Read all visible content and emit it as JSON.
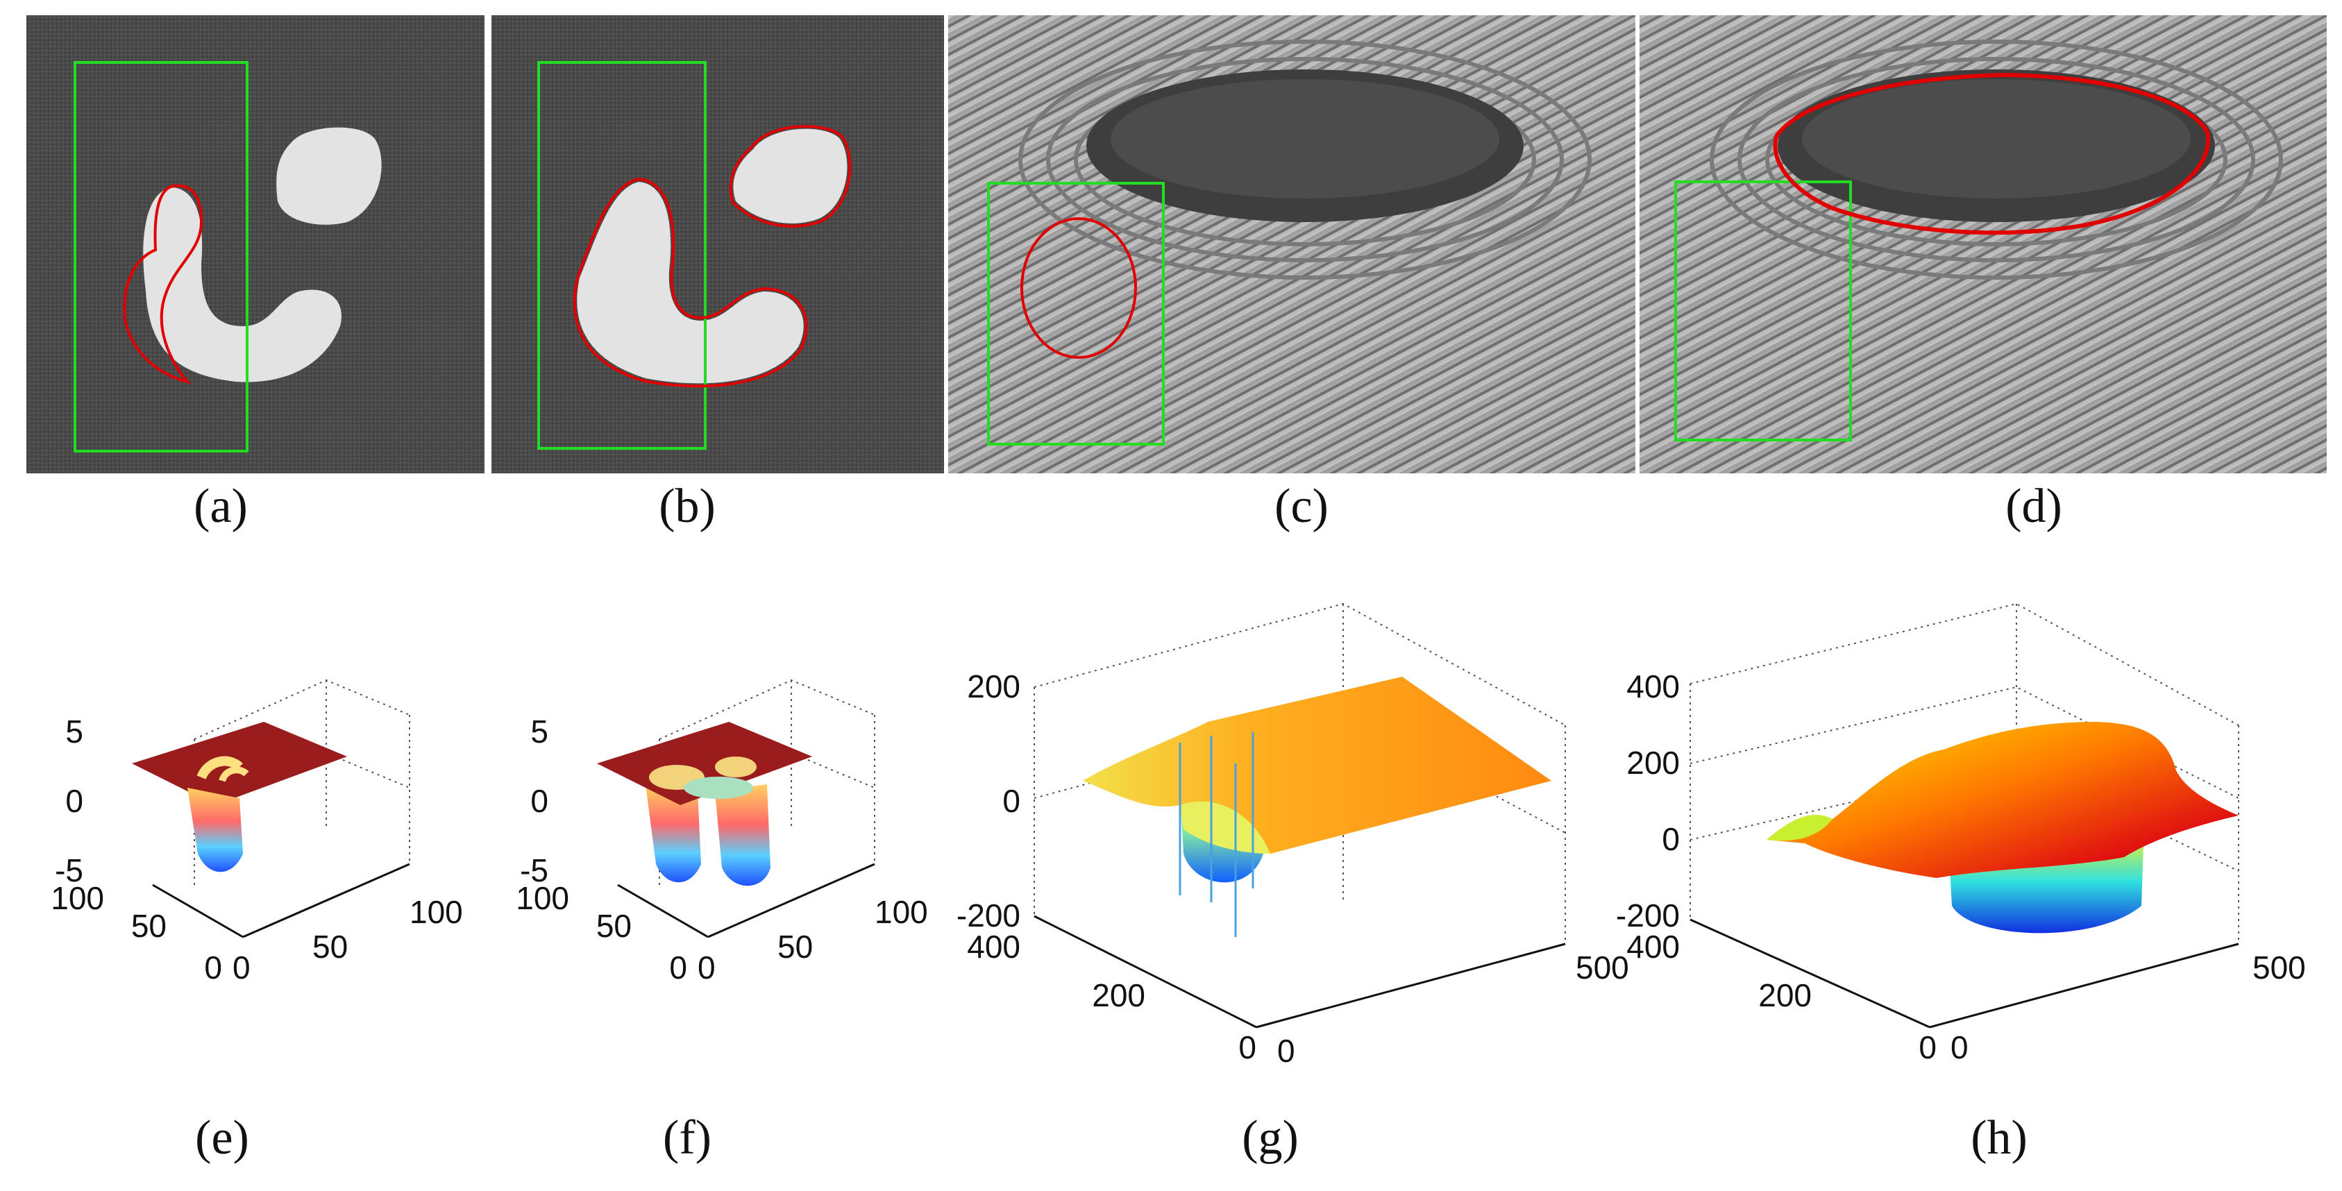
{
  "figure": {
    "panels": [
      {
        "id": "a",
        "caption": "(a)",
        "content": "synthetic image, bounding box with partial contour"
      },
      {
        "id": "b",
        "caption": "(b)",
        "content": "synthetic image, bounding box with final contour"
      },
      {
        "id": "c",
        "caption": "(c)",
        "content": "zen garden photo, bounding box with initial contour"
      },
      {
        "id": "d",
        "caption": "(d)",
        "content": "zen garden photo, bounding box with final contour"
      },
      {
        "id": "e",
        "caption": "(e)"
      },
      {
        "id": "f",
        "caption": "(f)"
      },
      {
        "id": "g",
        "caption": "(g)"
      },
      {
        "id": "h",
        "caption": "(h)"
      }
    ],
    "colors": {
      "box": "#22dd22",
      "contour": "#e00000"
    }
  },
  "chart_data": [
    {
      "type": "surface",
      "panel": "e",
      "zticks": [
        "5",
        "0",
        "-5"
      ],
      "yticks": [
        "100",
        "50",
        "0"
      ],
      "xticks": [
        "0",
        "50",
        "100"
      ],
      "zlim": [
        -5,
        5
      ],
      "grid": true
    },
    {
      "type": "surface",
      "panel": "f",
      "zticks": [
        "5",
        "0",
        "-5"
      ],
      "yticks": [
        "100",
        "50",
        "0"
      ],
      "xticks": [
        "0",
        "50",
        "100"
      ],
      "zlim": [
        -5,
        5
      ],
      "grid": true
    },
    {
      "type": "surface",
      "panel": "g",
      "zticks": [
        "200",
        "0",
        "-200"
      ],
      "yticks": [
        "400",
        "200",
        "0"
      ],
      "xticks": [
        "0",
        "500"
      ],
      "zlim": [
        -200,
        200
      ],
      "grid": true
    },
    {
      "type": "surface",
      "panel": "h",
      "zticks": [
        "400",
        "200",
        "0",
        "-200"
      ],
      "yticks": [
        "400",
        "200",
        "0"
      ],
      "xticks": [
        "0",
        "500"
      ],
      "zlim": [
        -200,
        400
      ],
      "grid": true
    }
  ]
}
